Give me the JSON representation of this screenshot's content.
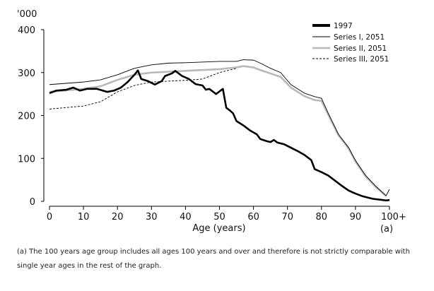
{
  "chart_data": {
    "type": "line",
    "ylabel": "'000",
    "xlabel": "Age (years)",
    "x_note": "(a)",
    "xlim": [
      0,
      100
    ],
    "ylim": [
      0,
      400
    ],
    "xticks": [
      "0",
      "10",
      "20",
      "30",
      "40",
      "50",
      "60",
      "70",
      "80",
      "90",
      "100+"
    ],
    "yticks": [
      "0",
      "100",
      "200",
      "300",
      "400"
    ],
    "grid": false,
    "legend_position": "top-right",
    "series": [
      {
        "name": "1997",
        "style": "thick-black",
        "color": "#000000",
        "points": [
          [
            0,
            252
          ],
          [
            2,
            258
          ],
          [
            5,
            260
          ],
          [
            7,
            265
          ],
          [
            9,
            258
          ],
          [
            11,
            262
          ],
          [
            14,
            262
          ],
          [
            17,
            255
          ],
          [
            19,
            258
          ],
          [
            21,
            265
          ],
          [
            23,
            278
          ],
          [
            25,
            295
          ],
          [
            26,
            305
          ],
          [
            27,
            285
          ],
          [
            29,
            280
          ],
          [
            31,
            272
          ],
          [
            33,
            280
          ],
          [
            34,
            292
          ],
          [
            36,
            298
          ],
          [
            37,
            304
          ],
          [
            39,
            292
          ],
          [
            41,
            285
          ],
          [
            43,
            273
          ],
          [
            45,
            270
          ],
          [
            46,
            260
          ],
          [
            47,
            262
          ],
          [
            49,
            250
          ],
          [
            51,
            262
          ],
          [
            52,
            218
          ],
          [
            53,
            212
          ],
          [
            54,
            205
          ],
          [
            55,
            187
          ],
          [
            57,
            177
          ],
          [
            59,
            165
          ],
          [
            61,
            156
          ],
          [
            62,
            145
          ],
          [
            64,
            140
          ],
          [
            65,
            138
          ],
          [
            66,
            143
          ],
          [
            67,
            137
          ],
          [
            69,
            133
          ],
          [
            71,
            125
          ],
          [
            73,
            117
          ],
          [
            75,
            108
          ],
          [
            77,
            96
          ],
          [
            78,
            75
          ],
          [
            80,
            68
          ],
          [
            82,
            60
          ],
          [
            84,
            48
          ],
          [
            86,
            36
          ],
          [
            88,
            25
          ],
          [
            90,
            18
          ],
          [
            92,
            12
          ],
          [
            95,
            6
          ],
          [
            98,
            3
          ],
          [
            99,
            2
          ],
          [
            100,
            3
          ]
        ]
      },
      {
        "name": "Series I, 2051",
        "style": "thin-black",
        "color": "#000000",
        "points": [
          [
            0,
            272
          ],
          [
            10,
            278
          ],
          [
            15,
            283
          ],
          [
            20,
            295
          ],
          [
            25,
            310
          ],
          [
            30,
            318
          ],
          [
            35,
            322
          ],
          [
            40,
            323
          ],
          [
            50,
            326
          ],
          [
            55,
            326
          ],
          [
            57,
            330
          ],
          [
            60,
            329
          ],
          [
            62,
            322
          ],
          [
            65,
            310
          ],
          [
            68,
            300
          ],
          [
            71,
            272
          ],
          [
            75,
            252
          ],
          [
            78,
            244
          ],
          [
            80,
            240
          ],
          [
            82,
            205
          ],
          [
            85,
            156
          ],
          [
            88,
            125
          ],
          [
            90,
            95
          ],
          [
            93,
            60
          ],
          [
            96,
            35
          ],
          [
            99,
            13
          ],
          [
            100,
            28
          ]
        ]
      },
      {
        "name": "Series II, 2051",
        "style": "thick-grey",
        "color": "#b8b8b8",
        "points": [
          [
            0,
            255
          ],
          [
            10,
            262
          ],
          [
            15,
            268
          ],
          [
            20,
            283
          ],
          [
            25,
            295
          ],
          [
            30,
            300
          ],
          [
            40,
            304
          ],
          [
            50,
            308
          ],
          [
            55,
            312
          ],
          [
            57,
            315
          ],
          [
            60,
            312
          ],
          [
            62,
            306
          ],
          [
            65,
            298
          ],
          [
            68,
            290
          ],
          [
            71,
            265
          ],
          [
            75,
            245
          ],
          [
            78,
            236
          ],
          [
            80,
            234
          ],
          [
            82,
            202
          ],
          [
            85,
            154
          ],
          [
            88,
            123
          ],
          [
            90,
            93
          ],
          [
            93,
            58
          ],
          [
            96,
            33
          ],
          [
            99,
            12
          ]
        ]
      },
      {
        "name": "Series III, 2051",
        "style": "dashed-black",
        "color": "#000000",
        "points": [
          [
            0,
            215
          ],
          [
            10,
            222
          ],
          [
            15,
            232
          ],
          [
            20,
            255
          ],
          [
            25,
            270
          ],
          [
            30,
            278
          ],
          [
            40,
            282
          ],
          [
            45,
            285
          ],
          [
            50,
            300
          ],
          [
            55,
            310
          ]
        ]
      }
    ]
  },
  "footnote": "(a) The 100 years age group includes all ages 100 years and over and therefore is not strictly comparable with single year ages in the rest of the graph."
}
